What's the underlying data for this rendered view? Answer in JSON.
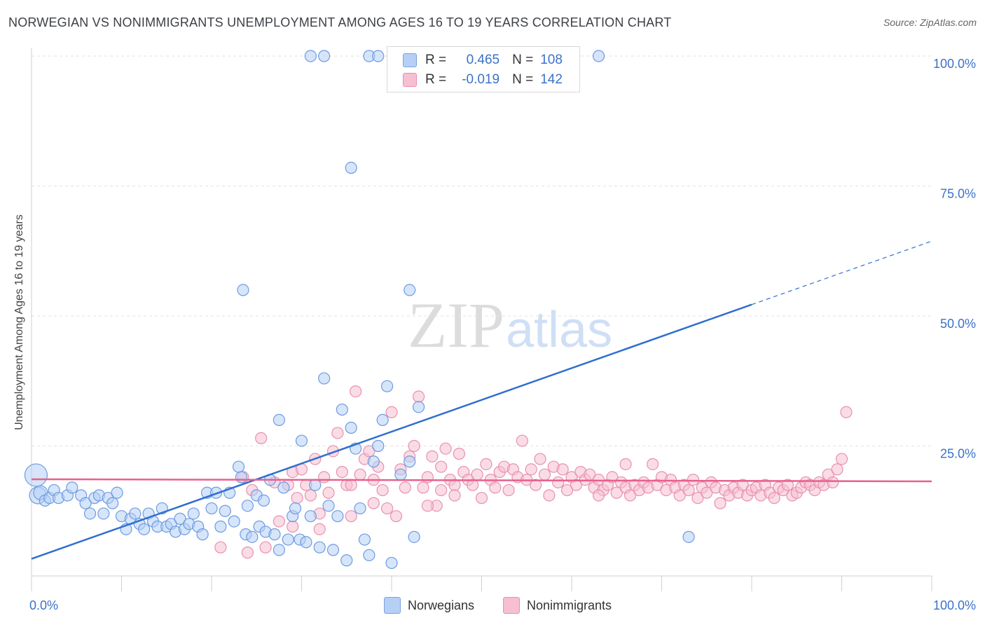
{
  "title": "NORWEGIAN VS NONIMMIGRANTS UNEMPLOYMENT AMONG AGES 16 TO 19 YEARS CORRELATION CHART",
  "source": "Source: ZipAtlas.com",
  "watermark": {
    "zip": "ZIP",
    "atlas": "atlas"
  },
  "legend": {
    "norwegians": {
      "r_label": "R =",
      "r_value": "0.465",
      "n_label": "N =",
      "n_value": "108"
    },
    "nonimmigrants": {
      "r_label": "R =",
      "r_value": "-0.019",
      "n_label": "N =",
      "n_value": "142"
    },
    "bottom": [
      "Norwegians",
      "Nonimmigrants"
    ]
  },
  "colors": {
    "blue": "#6d9be0",
    "blue_fill": "#b5cff5",
    "blue_line": "#2f6fd0",
    "pink": "#e891ad",
    "pink_fill": "#f6bfd2",
    "pink_line": "#e8608c",
    "tick_text": "#3b72c9"
  },
  "chart_data": {
    "type": "scatter",
    "title": "NORWEGIAN VS NONIMMIGRANTS UNEMPLOYMENT AMONG AGES 16 TO 19 YEARS CORRELATION CHART",
    "xlabel": "",
    "ylabel": "Unemployment Among Ages 16 to 19 years",
    "xlim": [
      0,
      100
    ],
    "ylim": [
      0,
      100
    ],
    "x_tick_labels": [
      "0.0%",
      "100.0%"
    ],
    "y_ticks": [
      25,
      50,
      75,
      100
    ],
    "y_tick_labels": [
      "25.0%",
      "50.0%",
      "75.0%",
      "100.0%"
    ],
    "grid": true,
    "legend_position": "top-center",
    "series": [
      {
        "name": "Norwegians",
        "R": 0.465,
        "N": 108,
        "trend": {
          "start": [
            0,
            3.3
          ],
          "end": [
            80,
            52.2
          ],
          "dashed_end": [
            100,
            64.4
          ]
        },
        "points": [
          [
            0.5,
            19.4,
            16
          ],
          [
            0.7,
            15.5,
            12
          ],
          [
            1,
            16,
            10
          ],
          [
            1.5,
            14.5,
            8
          ],
          [
            2,
            15,
            8
          ],
          [
            2.5,
            16.5,
            8
          ],
          [
            3,
            15,
            8
          ],
          [
            4,
            15.5,
            8
          ],
          [
            4.5,
            17,
            8
          ],
          [
            5.5,
            15.5,
            8
          ],
          [
            6,
            14,
            8
          ],
          [
            6.5,
            12,
            8
          ],
          [
            7,
            15,
            8
          ],
          [
            7.5,
            15.5,
            8
          ],
          [
            8,
            12,
            8
          ],
          [
            8.5,
            15,
            8
          ],
          [
            9,
            14,
            8
          ],
          [
            9.5,
            16,
            8
          ],
          [
            10,
            11.5,
            8
          ],
          [
            10.5,
            9,
            8
          ],
          [
            11,
            11,
            8
          ],
          [
            11.5,
            12,
            8
          ],
          [
            12,
            10,
            8
          ],
          [
            12.5,
            9,
            8
          ],
          [
            13,
            12,
            8
          ],
          [
            13.5,
            10.5,
            8
          ],
          [
            14,
            9.5,
            8
          ],
          [
            14.5,
            13,
            8
          ],
          [
            15,
            9.5,
            8
          ],
          [
            15.5,
            10,
            8
          ],
          [
            16,
            8.5,
            8
          ],
          [
            16.5,
            11,
            8
          ],
          [
            17,
            9,
            8
          ],
          [
            17.5,
            10,
            8
          ],
          [
            18,
            12,
            8
          ],
          [
            18.5,
            9.5,
            8
          ],
          [
            19,
            8,
            8
          ],
          [
            19.5,
            16,
            8
          ],
          [
            20,
            13,
            8
          ],
          [
            20.5,
            16,
            8
          ],
          [
            21,
            9.5,
            8
          ],
          [
            21.5,
            12.5,
            8
          ],
          [
            22,
            16,
            8
          ],
          [
            22.5,
            10.5,
            8
          ],
          [
            23,
            21,
            8
          ],
          [
            23.3,
            19,
            8
          ],
          [
            23.8,
            8,
            8
          ],
          [
            24,
            13.5,
            8
          ],
          [
            24.5,
            7.5,
            8
          ],
          [
            25,
            15.5,
            8
          ],
          [
            25.3,
            9.5,
            8
          ],
          [
            25.8,
            14.5,
            8
          ],
          [
            26,
            8.5,
            8
          ],
          [
            26.5,
            18.5,
            8
          ],
          [
            27,
            8,
            8
          ],
          [
            27.5,
            5,
            8
          ],
          [
            28,
            17,
            8
          ],
          [
            28.5,
            7,
            8
          ],
          [
            29,
            11.5,
            8
          ],
          [
            29.3,
            13,
            8
          ],
          [
            29.8,
            7,
            8
          ],
          [
            30,
            26,
            8
          ],
          [
            30.5,
            6.5,
            8
          ],
          [
            31,
            11.5,
            8
          ],
          [
            31.5,
            17.5,
            8
          ],
          [
            32,
            5.5,
            8
          ],
          [
            32.5,
            38,
            8
          ],
          [
            33,
            13.5,
            8
          ],
          [
            33.5,
            5,
            8
          ],
          [
            34,
            11.5,
            8
          ],
          [
            34.5,
            32,
            8
          ],
          [
            35,
            3,
            8
          ],
          [
            35.5,
            28.5,
            8
          ],
          [
            36,
            24.5,
            8
          ],
          [
            36.5,
            13,
            8
          ],
          [
            37,
            7,
            8
          ],
          [
            37.5,
            4,
            8
          ],
          [
            38,
            22,
            8
          ],
          [
            38.5,
            25,
            8
          ],
          [
            39,
            30,
            8
          ],
          [
            39.5,
            36.5,
            8
          ],
          [
            40,
            2.5,
            8
          ],
          [
            41,
            19.5,
            8
          ],
          [
            42,
            22,
            8
          ],
          [
            42.5,
            7.5,
            8
          ],
          [
            43,
            32.5,
            8
          ],
          [
            42,
            55,
            8
          ],
          [
            35.5,
            78.5,
            8
          ],
          [
            23.5,
            55,
            8
          ],
          [
            37.5,
            100,
            8
          ],
          [
            38.5,
            100,
            8
          ],
          [
            63,
            100,
            8
          ],
          [
            31,
            100,
            8
          ],
          [
            32.5,
            100,
            8
          ],
          [
            73,
            7.5,
            8
          ],
          [
            27.5,
            30,
            8
          ]
        ]
      },
      {
        "name": "Nonimmigrants",
        "R": -0.019,
        "N": 142,
        "trend": {
          "start": [
            0,
            18.6
          ],
          "end": [
            100,
            18.2
          ]
        },
        "points": [
          [
            21,
            5.5,
            8
          ],
          [
            23.5,
            19,
            8
          ],
          [
            24,
            4.5,
            8
          ],
          [
            24.5,
            16.5,
            8
          ],
          [
            25.5,
            26.5,
            8
          ],
          [
            26,
            5.5,
            8
          ],
          [
            27,
            18,
            8
          ],
          [
            27.5,
            10.5,
            8
          ],
          [
            28.5,
            17.5,
            8
          ],
          [
            29,
            20,
            8
          ],
          [
            29.5,
            15,
            8
          ],
          [
            30,
            20.5,
            8
          ],
          [
            30.5,
            17.5,
            8
          ],
          [
            31,
            15.5,
            8
          ],
          [
            31.5,
            22.5,
            8
          ],
          [
            32,
            9,
            8
          ],
          [
            32.5,
            19,
            8
          ],
          [
            33,
            16,
            8
          ],
          [
            33.5,
            24,
            8
          ],
          [
            34,
            27.5,
            8
          ],
          [
            34.5,
            20,
            8
          ],
          [
            35,
            17.5,
            8
          ],
          [
            35.5,
            11.5,
            8
          ],
          [
            36,
            35.5,
            8
          ],
          [
            36.5,
            19.5,
            8
          ],
          [
            37,
            22.5,
            8
          ],
          [
            37.5,
            24,
            8
          ],
          [
            38,
            18.5,
            8
          ],
          [
            38.5,
            21,
            8
          ],
          [
            39,
            16.5,
            8
          ],
          [
            39.5,
            13,
            8
          ],
          [
            40,
            31.5,
            8
          ],
          [
            40.5,
            11.5,
            8
          ],
          [
            41,
            20.5,
            8
          ],
          [
            41.5,
            17,
            8
          ],
          [
            42,
            23,
            8
          ],
          [
            42.5,
            25,
            8
          ],
          [
            43,
            34.5,
            8
          ],
          [
            43.5,
            17,
            8
          ],
          [
            44,
            19,
            8
          ],
          [
            44.5,
            23,
            8
          ],
          [
            45,
            13.5,
            8
          ],
          [
            45.5,
            21,
            8
          ],
          [
            46,
            24.5,
            8
          ],
          [
            46.5,
            18.5,
            8
          ],
          [
            47,
            17.5,
            8
          ],
          [
            47.5,
            23.5,
            8
          ],
          [
            48,
            20,
            8
          ],
          [
            48.5,
            18.5,
            8
          ],
          [
            49,
            17.5,
            8
          ],
          [
            49.5,
            19.5,
            8
          ],
          [
            50,
            15,
            8
          ],
          [
            50.5,
            21.5,
            8
          ],
          [
            51,
            18.5,
            8
          ],
          [
            51.5,
            17,
            8
          ],
          [
            52,
            20,
            8
          ],
          [
            52.5,
            21,
            8
          ],
          [
            53,
            16.5,
            8
          ],
          [
            53.5,
            20.5,
            8
          ],
          [
            54,
            19,
            8
          ],
          [
            54.5,
            26,
            8
          ],
          [
            55,
            18.5,
            8
          ],
          [
            55.5,
            20.5,
            8
          ],
          [
            56,
            17.5,
            8
          ],
          [
            56.5,
            22.5,
            8
          ],
          [
            57,
            19.5,
            8
          ],
          [
            57.5,
            15.5,
            8
          ],
          [
            58,
            21,
            8
          ],
          [
            58.5,
            18,
            8
          ],
          [
            59,
            20.5,
            8
          ],
          [
            59.5,
            16.5,
            8
          ],
          [
            60,
            19,
            8
          ],
          [
            60.5,
            17.5,
            8
          ],
          [
            61,
            20,
            8
          ],
          [
            61.5,
            18.5,
            8
          ],
          [
            62,
            19.5,
            8
          ],
          [
            62.5,
            17,
            8
          ],
          [
            63,
            18.5,
            8
          ],
          [
            63.5,
            16.5,
            8
          ],
          [
            64,
            17.5,
            8
          ],
          [
            64.5,
            19,
            8
          ],
          [
            65,
            16,
            8
          ],
          [
            65.5,
            18,
            8
          ],
          [
            66,
            17,
            8
          ],
          [
            66.5,
            15.5,
            8
          ],
          [
            67,
            17.5,
            8
          ],
          [
            67.5,
            16.5,
            8
          ],
          [
            68,
            18,
            8
          ],
          [
            68.5,
            17,
            8
          ],
          [
            69,
            21.5,
            8
          ],
          [
            69.5,
            17.5,
            8
          ],
          [
            70,
            19,
            8
          ],
          [
            70.5,
            16.5,
            8
          ],
          [
            71,
            18.5,
            8
          ],
          [
            71.5,
            17,
            8
          ],
          [
            72,
            15.5,
            8
          ],
          [
            72.5,
            17.5,
            8
          ],
          [
            73,
            16.5,
            8
          ],
          [
            73.5,
            18.5,
            8
          ],
          [
            74,
            15,
            8
          ],
          [
            74.5,
            17,
            8
          ],
          [
            75,
            16,
            8
          ],
          [
            75.5,
            18,
            8
          ],
          [
            76,
            17,
            8
          ],
          [
            76.5,
            14,
            8
          ],
          [
            77,
            16.5,
            8
          ],
          [
            77.5,
            15.5,
            8
          ],
          [
            78,
            17,
            8
          ],
          [
            78.5,
            16,
            8
          ],
          [
            79,
            17.5,
            8
          ],
          [
            79.5,
            15.5,
            8
          ],
          [
            80,
            16.5,
            8
          ],
          [
            80.5,
            17,
            8
          ],
          [
            81,
            15.5,
            8
          ],
          [
            81.5,
            17.5,
            8
          ],
          [
            82,
            16,
            8
          ],
          [
            82.5,
            15,
            8
          ],
          [
            83,
            17,
            8
          ],
          [
            83.5,
            16.5,
            8
          ],
          [
            84,
            17.5,
            8
          ],
          [
            84.5,
            15.5,
            8
          ],
          [
            85,
            16,
            8
          ],
          [
            85.5,
            17,
            8
          ],
          [
            86,
            18,
            8
          ],
          [
            86.5,
            17.5,
            8
          ],
          [
            87,
            16.5,
            8
          ],
          [
            87.5,
            18,
            8
          ],
          [
            88,
            17.5,
            8
          ],
          [
            88.5,
            19.5,
            8
          ],
          [
            89,
            18,
            8
          ],
          [
            89.5,
            20.5,
            8
          ],
          [
            90,
            22.5,
            8
          ],
          [
            90.5,
            31.5,
            8
          ],
          [
            35.5,
            17.5,
            8
          ],
          [
            38,
            14,
            8
          ],
          [
            44,
            13.5,
            8
          ],
          [
            32,
            12,
            8
          ],
          [
            29,
            9.5,
            8
          ],
          [
            45.5,
            16.5,
            8
          ],
          [
            47,
            15.5,
            8
          ],
          [
            63,
            15.5,
            8
          ],
          [
            66,
            21.5,
            8
          ]
        ]
      }
    ]
  }
}
